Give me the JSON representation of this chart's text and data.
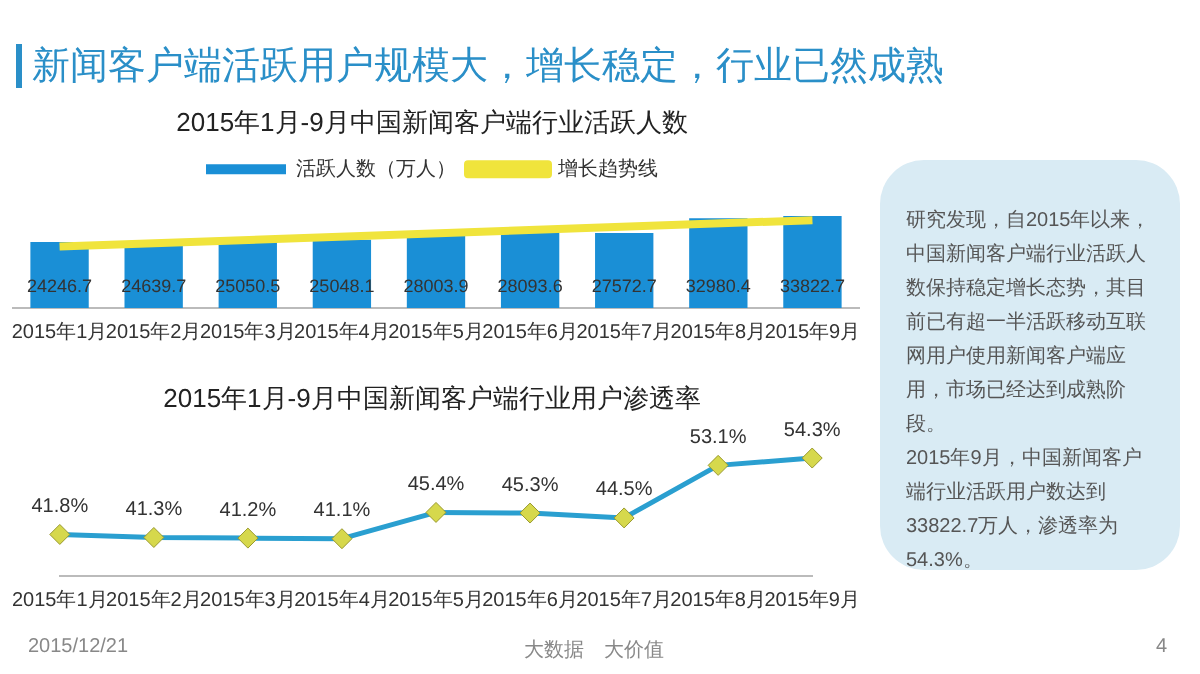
{
  "chart_data": [
    {
      "type": "bar",
      "title": "2015年1月-9月中国新闻客户端行业活跃人数",
      "categories": [
        "2015年1月",
        "2015年2月",
        "2015年3月",
        "2015年4月",
        "2015年5月",
        "2015年6月",
        "2015年7月",
        "2015年8月",
        "2015年9月"
      ],
      "series": [
        {
          "name": "活跃人数（万人）",
          "color": "#1a8fd6",
          "values": [
            24246.7,
            24639.7,
            25050.5,
            25048.1,
            28003.9,
            28093.6,
            27572.7,
            32980.4,
            33822.7
          ],
          "value_labels": [
            "24246.7",
            "24639.7",
            "25050.5",
            "25048.1",
            "28003.9",
            "28093.6",
            "27572.7",
            "32980.4",
            "33822.7"
          ]
        },
        {
          "name": "增长趋势线",
          "type": "line",
          "color": "#f0e43c",
          "values": [
            22600,
            null,
            null,
            null,
            null,
            null,
            null,
            null,
            32300
          ]
        }
      ],
      "legend": "top",
      "tick_labels": "x"
    },
    {
      "type": "line",
      "title": "2015年1月-9月中国新闻客户端行业用户渗透率",
      "categories": [
        "2015年1月",
        "2015年2月",
        "2015年3月",
        "2015年4月",
        "2015年5月",
        "2015年6月",
        "2015年7月",
        "2015年8月",
        "2015年9月"
      ],
      "series": [
        {
          "color": "#2a9fd0",
          "colors": [
            "#d6d84c",
            "#d6d84c",
            "#d6d84c",
            "#d6d84c",
            "#d6d84c",
            "#d6d84c",
            "#d6d84c",
            "#d6d84c",
            "#d6d84c"
          ],
          "values": [
            41.8,
            41.3,
            41.2,
            41.1,
            45.4,
            45.3,
            44.5,
            53.1,
            54.3
          ],
          "value_labels": [
            "41.8%",
            "41.3%",
            "41.2%",
            "41.1%",
            "45.4%",
            "45.3%",
            "44.5%",
            "53.1%",
            "54.3%"
          ]
        }
      ],
      "marker": "diamond",
      "legend": false,
      "tick_labels": "x"
    },
    {
      "type": "other",
      "title": "新闻客户端活跃用户规模大，增长稳定，行业已然成熟",
      "annotations": [
        "研究发现，自2015年以来，中国新闻客户端行业活跃人数保持稳定增长态势，其目前已有超一半活跃移动互联网用户使用新闻客户端应用，市场已经达到成熟阶段。",
        "2015年9月，中国新闻客户端行业活跃用户数达到33822.7万人，渗透率为54.3%。",
        "2015/12/21",
        "大数据　大价值",
        "4"
      ]
    }
  ]
}
